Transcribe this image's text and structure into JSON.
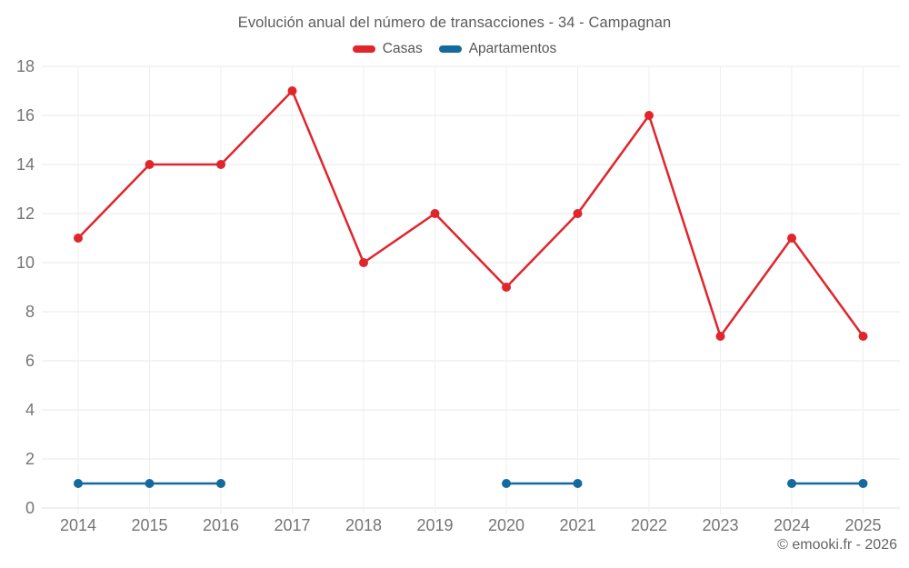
{
  "title": "Evolución anual del número de transacciones - 34 - Campagnan",
  "footer": "© emooki.fr - 2026",
  "colors": {
    "casas": "#e0252c",
    "apartamentos": "#14699e",
    "grid_horizontal": "#e8e8e8",
    "grid_vertical": "#efefef",
    "axis_line": "#e0e0e0",
    "tick_label": "#757575",
    "title_text": "#5c5c5c",
    "legend_text": "#565656",
    "footer_text": "#646464",
    "background": "#ffffff"
  },
  "chart_data": {
    "type": "line",
    "title": "Evolución anual del número de transacciones - 34 - Campagnan",
    "xlabel": "",
    "ylabel": "",
    "categories": [
      "2014",
      "2015",
      "2016",
      "2017",
      "2018",
      "2019",
      "2020",
      "2021",
      "2022",
      "2023",
      "2024",
      "2025"
    ],
    "series": [
      {
        "name": "Casas",
        "color": "#e0252c",
        "values": [
          11,
          14,
          14,
          17,
          10,
          12,
          9,
          12,
          16,
          7,
          11,
          7
        ]
      },
      {
        "name": "Apartamentos",
        "color": "#14699e",
        "values": [
          1,
          1,
          1,
          null,
          null,
          null,
          1,
          1,
          null,
          null,
          1,
          1
        ]
      }
    ],
    "ylim": [
      0,
      18
    ],
    "yticks": [
      0,
      2,
      4,
      6,
      8,
      10,
      12,
      14,
      16,
      18
    ],
    "grid": true,
    "legend_position": "top",
    "annotations": []
  }
}
